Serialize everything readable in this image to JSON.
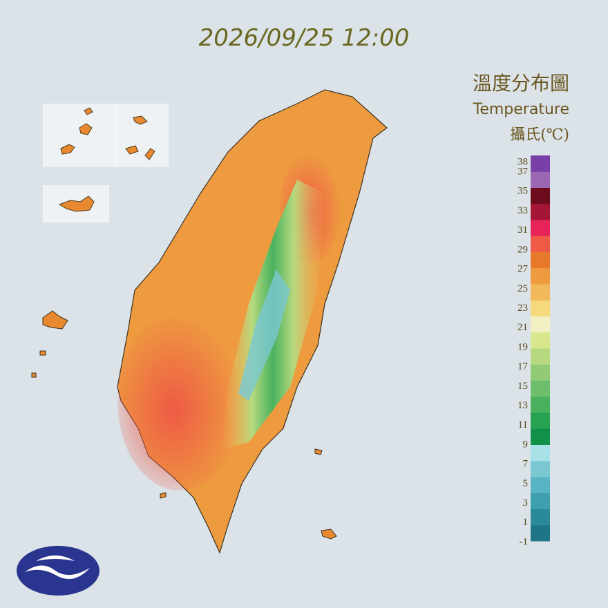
{
  "header": {
    "title": "2026/09/25 12:00"
  },
  "legend": {
    "title": "溫度分布圖",
    "subtitle": "Temperature",
    "unit": "攝氏(℃)",
    "ticks": [
      38,
      37,
      35,
      33,
      31,
      29,
      27,
      25,
      23,
      21,
      19,
      17,
      15,
      13,
      11,
      9,
      7,
      5,
      3,
      1,
      -1
    ],
    "colors": [
      "#1d7585",
      "#2a8a9a",
      "#3e9fae",
      "#58b4c2",
      "#7bc8d3",
      "#a9e1e8",
      "#11904a",
      "#27a152",
      "#49b15e",
      "#6dbf6b",
      "#92cb75",
      "#b6d97f",
      "#d8e68c",
      "#f2efc2",
      "#f5d97c",
      "#f2b95c",
      "#ee9b40",
      "#e8792b",
      "#ee5a45",
      "#e7235a",
      "#a51535",
      "#6d0c1c",
      "#9a68b3",
      "#7a3fa6"
    ]
  }
}
